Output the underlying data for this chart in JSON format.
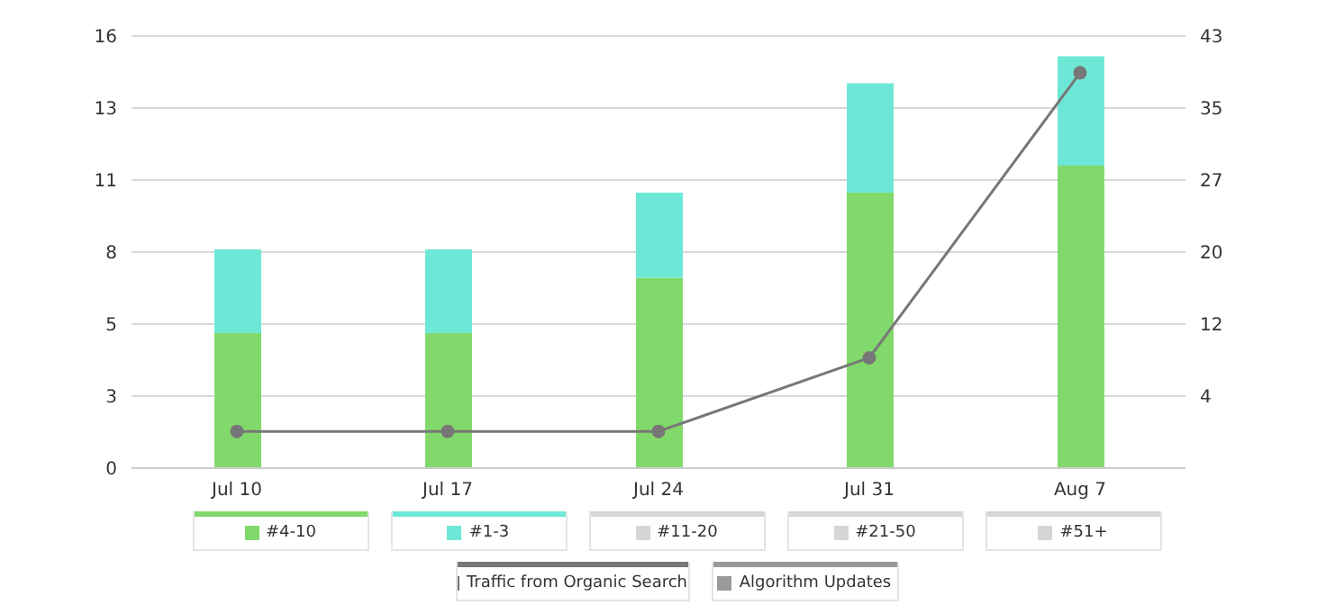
{
  "chart_data": {
    "type": "bar",
    "stacked": true,
    "categories": [
      "Jul 10",
      "Jul 17",
      "Jul 24",
      "Jul 31",
      "Aug 7"
    ],
    "series": [
      {
        "name": "#4-10",
        "color": "#82d96b",
        "values": [
          5.0,
          5.0,
          7.05,
          10.2,
          11.2
        ]
      },
      {
        "name": "#1-3",
        "color": "#6ee8d6",
        "values": [
          3.1,
          3.1,
          3.15,
          4.05,
          4.05
        ]
      },
      {
        "name": "#11-20",
        "color": "#d6d6d6",
        "values": [
          0,
          0,
          0,
          0,
          0
        ]
      },
      {
        "name": "#21-50",
        "color": "#d6d6d6",
        "values": [
          0,
          0,
          0,
          0,
          0
        ]
      },
      {
        "name": "#51+",
        "color": "#d6d6d6",
        "values": [
          0,
          0,
          0,
          0,
          0
        ]
      },
      {
        "name": "Traffic from Organic Search",
        "type": "line",
        "axis": "y2",
        "color": "#777777",
        "values": [
          0,
          0,
          0,
          8,
          39
        ]
      },
      {
        "name": "Algorithm Updates",
        "type": "line",
        "axis": "y2",
        "color": "#999999",
        "values": [
          null,
          null,
          null,
          null,
          null
        ]
      }
    ],
    "ylim": [
      0,
      16
    ],
    "yticks": [
      0,
      {
        "value": 2.67,
        "label": "3"
      },
      {
        "value": 5.33,
        "label": "5"
      },
      8,
      {
        "value": 10.67,
        "label": "11"
      },
      {
        "value": 13.33,
        "label": "13"
      },
      16
    ],
    "y2lim": [
      -4,
      43
    ],
    "y2ticks": [
      {
        "value": -4,
        "label": null
      },
      {
        "value": 3.83,
        "label": "4"
      },
      {
        "value": 11.67,
        "label": "12"
      },
      {
        "value": 19.5,
        "label": "20"
      },
      {
        "value": 27.33,
        "label": "27"
      },
      {
        "value": 35.17,
        "label": "35"
      },
      43
    ],
    "grid": "y",
    "legend": "bottom",
    "marker": "circle",
    "line_style": "solid"
  }
}
